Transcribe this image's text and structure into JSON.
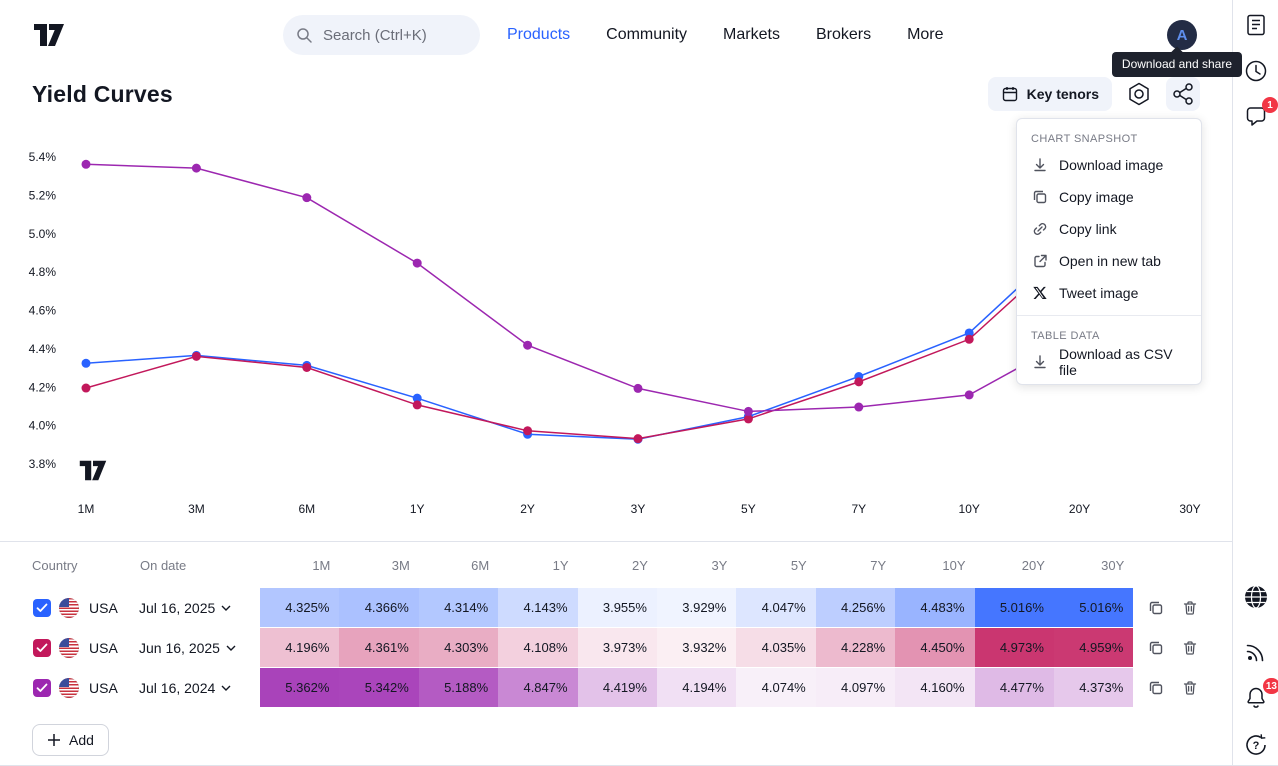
{
  "nav": {
    "search_placeholder": "Search (Ctrl+K)",
    "items": [
      {
        "label": "Products",
        "active": true
      },
      {
        "label": "Community",
        "active": false
      },
      {
        "label": "Markets",
        "active": false
      },
      {
        "label": "Brokers",
        "active": false
      },
      {
        "label": "More",
        "active": false
      }
    ],
    "avatar_letter": "A"
  },
  "tooltip": "Download and share",
  "page": {
    "title": "Yield Curves"
  },
  "toolbar": {
    "key_tenors_label": "Key tenors",
    "icons": [
      "key-tenors-icon",
      "gear-icon",
      "share-icon"
    ]
  },
  "menu": {
    "sections": [
      {
        "header": "CHART SNAPSHOT",
        "items": [
          {
            "label": "Download image",
            "icon": "download-icon"
          },
          {
            "label": "Copy image",
            "icon": "copy-icon"
          },
          {
            "label": "Copy link",
            "icon": "link-icon"
          },
          {
            "label": "Open in new tab",
            "icon": "external-link-icon"
          },
          {
            "label": "Tweet image",
            "icon": "x-icon"
          }
        ]
      },
      {
        "header": "TABLE DATA",
        "items": [
          {
            "label": "Download as CSV file",
            "icon": "download-icon"
          }
        ]
      }
    ]
  },
  "chart_data": {
    "type": "line",
    "categories": [
      "1M",
      "3M",
      "6M",
      "1Y",
      "2Y",
      "3Y",
      "5Y",
      "7Y",
      "10Y",
      "20Y",
      "30Y"
    ],
    "y_ticks": [
      "5.4%",
      "5.2%",
      "5.0%",
      "4.8%",
      "4.6%",
      "4.4%",
      "4.2%",
      "4.0%",
      "3.8%"
    ],
    "ylim": [
      3.8,
      5.4
    ],
    "grid": false,
    "legend": "none",
    "series": [
      {
        "name": "USA Jul 16, 2025",
        "color": "#2962ff",
        "values": [
          4.325,
          4.366,
          4.314,
          4.143,
          3.955,
          3.929,
          4.047,
          4.256,
          4.483,
          5.016,
          5.016
        ]
      },
      {
        "name": "USA Jun 16, 2025",
        "color": "#c2185b",
        "values": [
          4.196,
          4.361,
          4.303,
          4.108,
          3.973,
          3.932,
          4.035,
          4.228,
          4.45,
          4.973,
          4.959
        ]
      },
      {
        "name": "USA Jul 16, 2024",
        "color": "#9c27b0",
        "values": [
          5.362,
          5.342,
          5.188,
          4.847,
          4.419,
          4.194,
          4.074,
          4.097,
          4.16,
          4.477,
          4.373
        ]
      }
    ]
  },
  "table": {
    "headers": [
      "Country",
      "On date",
      "1M",
      "3M",
      "6M",
      "1Y",
      "2Y",
      "3Y",
      "5Y",
      "7Y",
      "10Y",
      "20Y",
      "30Y"
    ],
    "rows": [
      {
        "country": "USA",
        "date": "Jul 16, 2025",
        "color": "#2962ff",
        "values": [
          "4.325%",
          "4.366%",
          "4.314%",
          "4.143%",
          "3.955%",
          "3.929%",
          "4.047%",
          "4.256%",
          "4.483%",
          "5.016%",
          "5.016%"
        ]
      },
      {
        "country": "USA",
        "date": "Jun 16, 2025",
        "color": "#c2185b",
        "values": [
          "4.196%",
          "4.361%",
          "4.303%",
          "4.108%",
          "3.973%",
          "3.932%",
          "4.035%",
          "4.228%",
          "4.450%",
          "4.973%",
          "4.959%"
        ]
      },
      {
        "country": "USA",
        "date": "Jul 16, 2024",
        "color": "#9c27b0",
        "values": [
          "5.362%",
          "5.342%",
          "5.188%",
          "4.847%",
          "4.419%",
          "4.194%",
          "4.074%",
          "4.097%",
          "4.160%",
          "4.477%",
          "4.373%"
        ]
      }
    ],
    "add_label": "Add"
  },
  "rail": {
    "top_icons": [
      "notebook-icon",
      "clock-icon",
      "chat-icon"
    ],
    "bottom_icons": [
      "globe-icon",
      "broadcast-icon",
      "bell-icon",
      "help-icon"
    ],
    "chat_badge": "1",
    "bell_badge": "13"
  }
}
